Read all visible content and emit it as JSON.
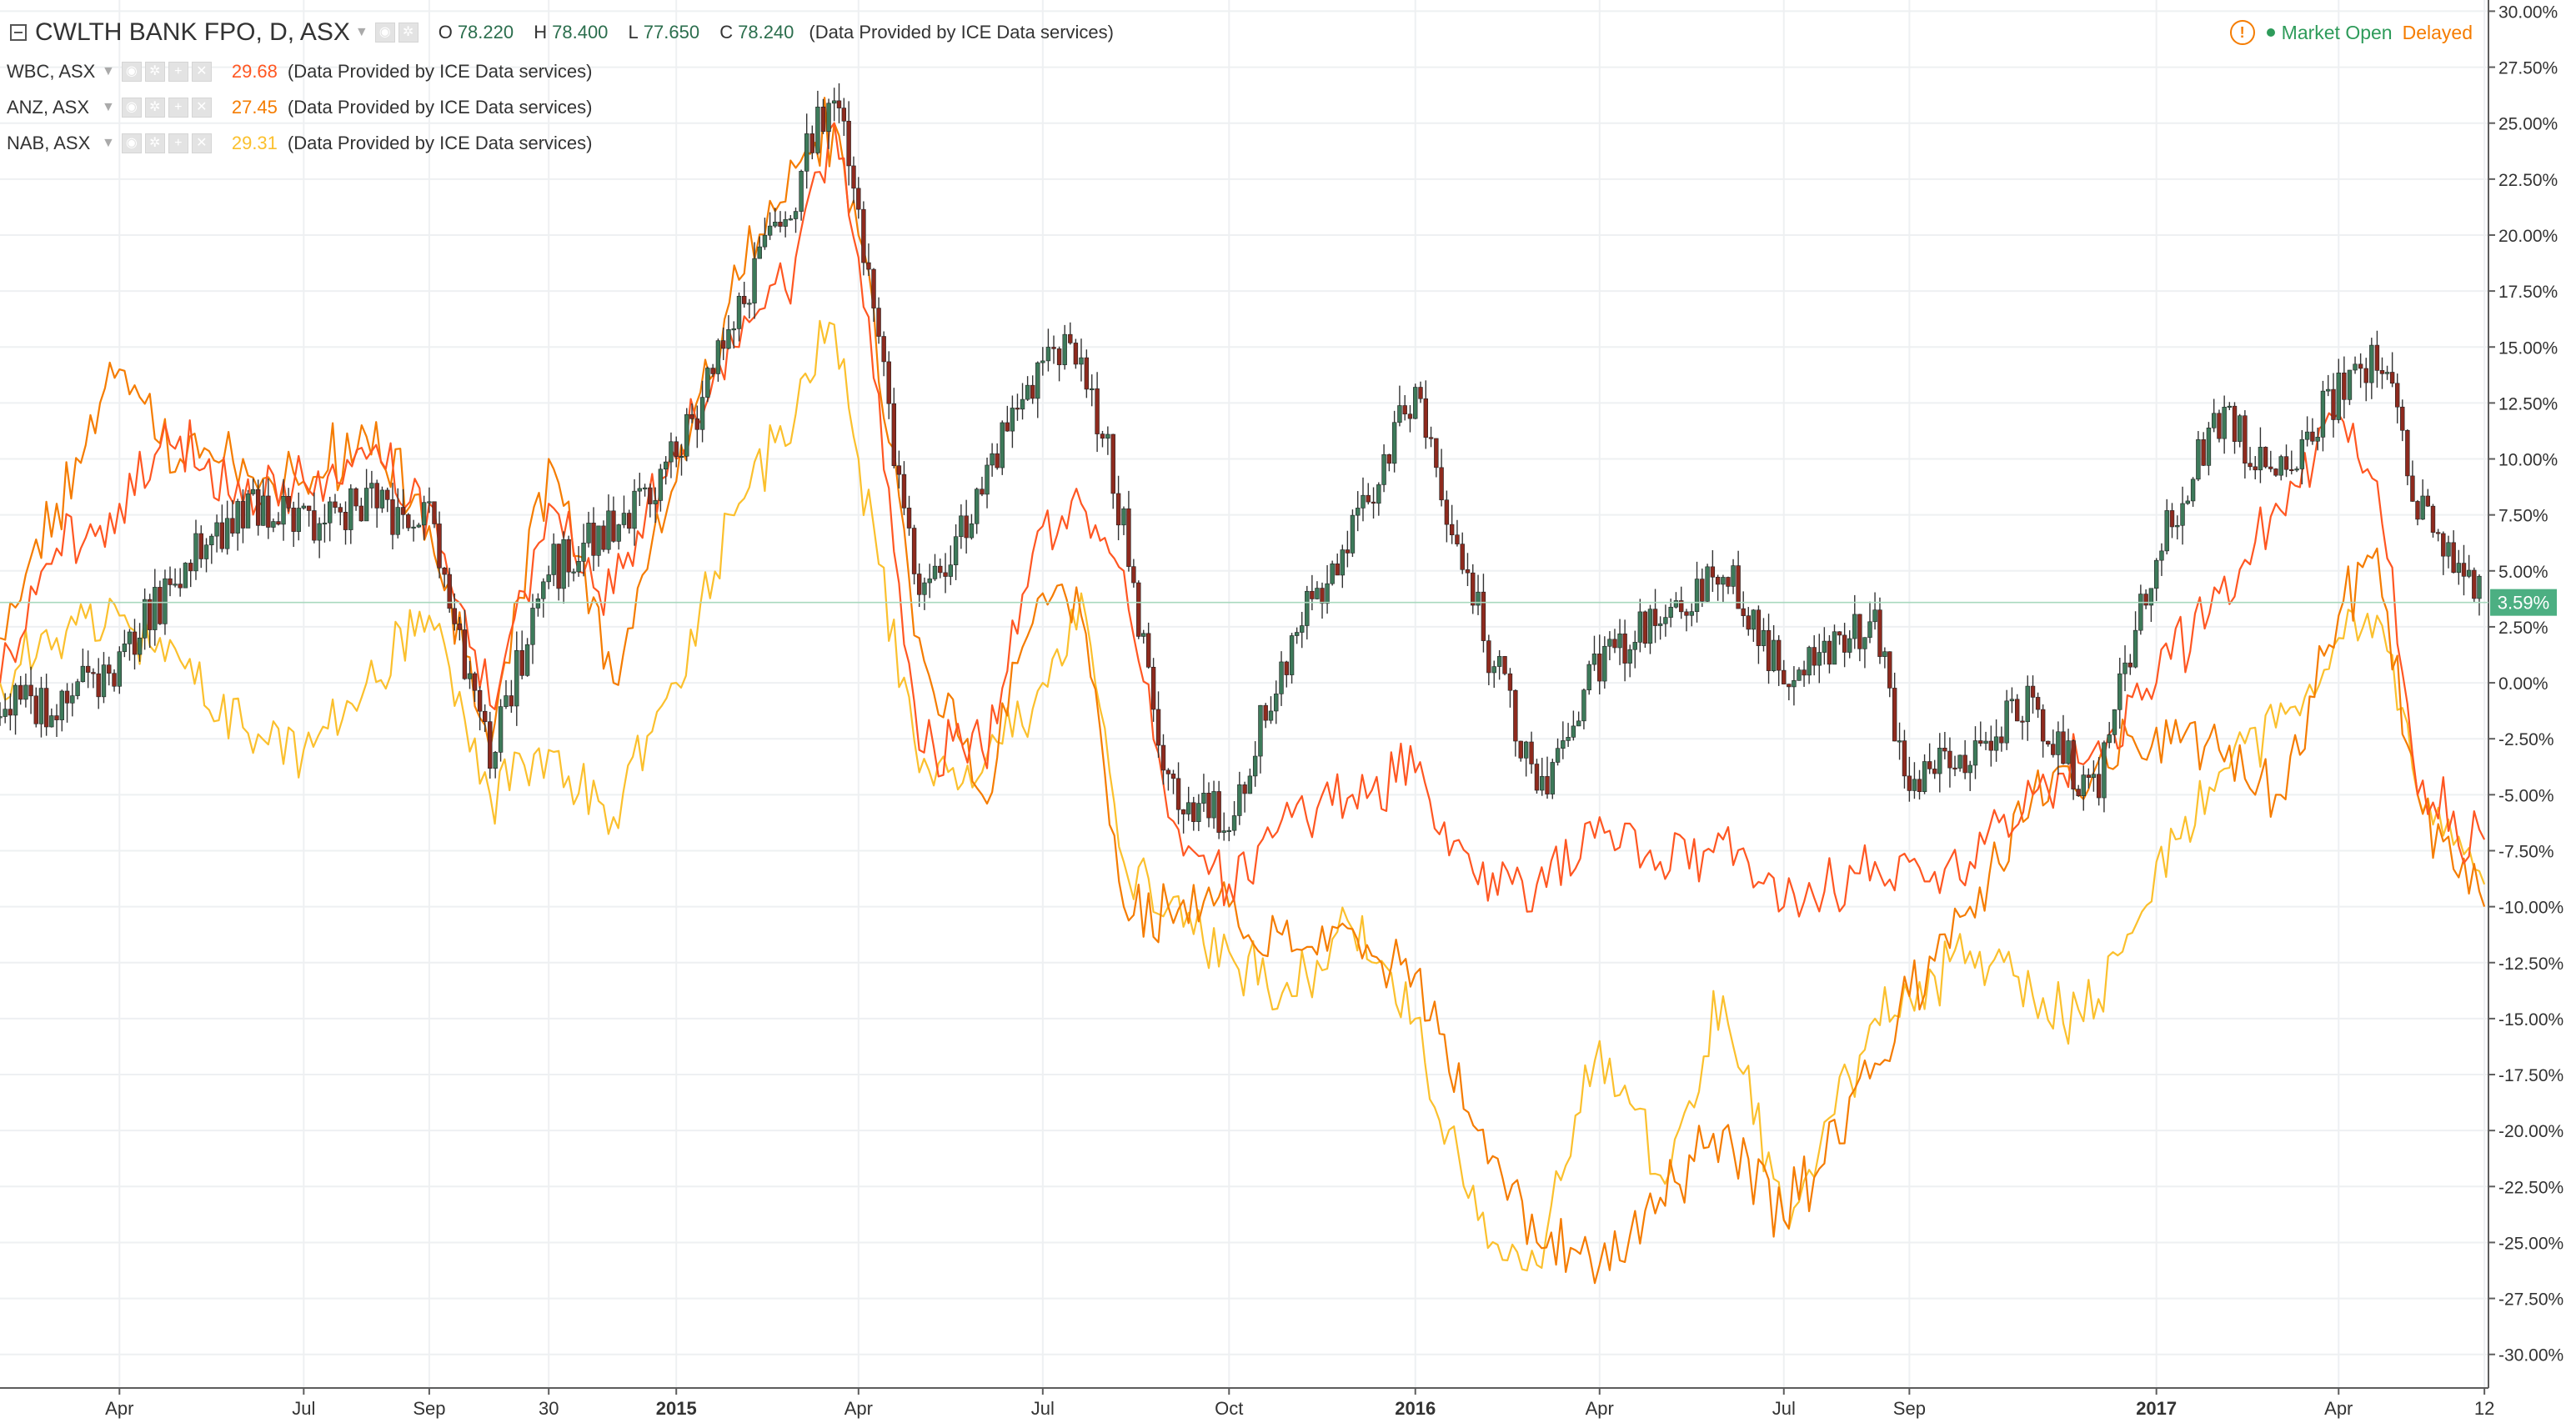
{
  "main": {
    "title": "CWLTH BANK FPO, D, ASX",
    "o_label": "O",
    "o": "78.220",
    "h_label": "H",
    "h": "78.400",
    "l_label": "L",
    "l": "77.650",
    "c_label": "C",
    "c": "78.240",
    "provider": "(Data Provided by ICE Data services)"
  },
  "legend": [
    {
      "name": "WBC, ASX",
      "value": "29.68",
      "color": "#ff5722",
      "provider": "(Data Provided by ICE Data services)"
    },
    {
      "name": "ANZ, ASX",
      "value": "27.45",
      "color": "#f57c00",
      "provider": "(Data Provided by ICE Data services)"
    },
    {
      "name": "NAB, ASX",
      "value": "29.31",
      "color": "#fbc02d",
      "provider": "(Data Provided by ICE Data services)"
    }
  ],
  "status": {
    "warn_icon": "warning-icon",
    "market": "Market Open",
    "delayed": "Delayed"
  },
  "colors": {
    "up": "#3d7a5a",
    "down": "#8e2a1e",
    "wbc": "#ff5722",
    "anz": "#f57c00",
    "nab": "#fbc02d",
    "last_price": "#4caf82"
  },
  "chart_data": {
    "type": "line",
    "x_ticks": [
      {
        "label": "Apr",
        "date": "2014-04-01",
        "bold": false
      },
      {
        "label": "Jul",
        "date": "2014-07-01",
        "bold": false
      },
      {
        "label": "Sep",
        "date": "2014-09-01",
        "bold": false
      },
      {
        "label": "30",
        "date": "2014-10-30",
        "bold": false
      },
      {
        "label": "2015",
        "date": "2015-01-01",
        "bold": true
      },
      {
        "label": "Apr",
        "date": "2015-04-01",
        "bold": false
      },
      {
        "label": "Jul",
        "date": "2015-07-01",
        "bold": false
      },
      {
        "label": "Oct",
        "date": "2015-10-01",
        "bold": false
      },
      {
        "label": "2016",
        "date": "2016-01-01",
        "bold": true
      },
      {
        "label": "Apr",
        "date": "2016-04-01",
        "bold": false
      },
      {
        "label": "Jul",
        "date": "2016-07-01",
        "bold": false
      },
      {
        "label": "Sep",
        "date": "2016-09-01",
        "bold": false
      },
      {
        "label": "2017",
        "date": "2017-01-01",
        "bold": true
      },
      {
        "label": "Apr",
        "date": "2017-04-01",
        "bold": false
      },
      {
        "label": "12",
        "date": "2017-06-12",
        "bold": false
      }
    ],
    "x_range": [
      "2014-02-01",
      "2017-06-14"
    ],
    "ylim": [
      -31.5,
      30.5
    ],
    "y_ticks": [
      30,
      27.5,
      25,
      22.5,
      20,
      17.5,
      15,
      12.5,
      10,
      7.5,
      5,
      2.5,
      0,
      -2.5,
      -5,
      -7.5,
      -10,
      -12.5,
      -15,
      -17.5,
      -20,
      -22.5,
      -25,
      -27.5,
      -30
    ],
    "y_tick_unit": "%",
    "last_value_label": "3.59%",
    "last_value": 3.59,
    "grid": true,
    "legend_position": "top-left",
    "series": [
      {
        "name": "CWLTH BANK FPO",
        "type": "candlestick",
        "color_up": "#3d7a5a",
        "color_down": "#8e2a1e",
        "x": [
          "2014-02-01",
          "2014-03-01",
          "2014-04-01",
          "2014-05-01",
          "2014-06-01",
          "2014-07-01",
          "2014-08-01",
          "2014-09-01",
          "2014-10-01",
          "2014-10-30",
          "2014-12-01",
          "2015-01-01",
          "2015-02-01",
          "2015-03-01",
          "2015-03-20",
          "2015-04-01",
          "2015-05-01",
          "2015-06-01",
          "2015-07-01",
          "2015-07-20",
          "2015-08-10",
          "2015-09-01",
          "2015-10-01",
          "2015-11-01",
          "2015-12-01",
          "2016-01-01",
          "2016-02-01",
          "2016-03-01",
          "2016-04-01",
          "2016-05-01",
          "2016-06-01",
          "2016-07-01",
          "2016-08-15",
          "2016-09-01",
          "2016-10-01",
          "2016-11-01",
          "2016-12-01",
          "2017-01-01",
          "2017-02-01",
          "2017-03-01",
          "2017-04-01",
          "2017-04-20",
          "2017-05-10",
          "2017-06-12"
        ],
        "y": [
          -1,
          -1,
          1,
          5,
          8,
          7,
          8,
          7,
          -3,
          5,
          7,
          10,
          17,
          22,
          27,
          21,
          3,
          9,
          14,
          15,
          7,
          -5,
          -6,
          2,
          7,
          13,
          3,
          -5,
          1,
          3,
          5,
          0,
          3,
          -5,
          -3,
          -1,
          -5,
          6,
          12,
          9,
          13,
          15,
          8,
          3.59
        ]
      },
      {
        "name": "WBC, ASX",
        "color": "#ff5722",
        "x": [
          "2014-02-01",
          "2014-03-01",
          "2014-04-01",
          "2014-05-01",
          "2014-06-01",
          "2014-07-01",
          "2014-08-01",
          "2014-09-01",
          "2014-10-01",
          "2014-10-30",
          "2014-12-01",
          "2015-01-01",
          "2015-02-01",
          "2015-03-01",
          "2015-03-20",
          "2015-04-01",
          "2015-05-01",
          "2015-06-01",
          "2015-07-01",
          "2015-07-20",
          "2015-08-10",
          "2015-09-01",
          "2015-10-01",
          "2015-11-01",
          "2015-12-01",
          "2016-01-01",
          "2016-02-01",
          "2016-03-01",
          "2016-04-01",
          "2016-05-01",
          "2016-06-01",
          "2016-07-01",
          "2016-08-15",
          "2016-09-01",
          "2016-10-01",
          "2016-11-01",
          "2016-12-01",
          "2017-01-01",
          "2017-02-01",
          "2017-03-01",
          "2017-04-01",
          "2017-04-20",
          "2017-05-10",
          "2017-06-12"
        ],
        "y": [
          0,
          6,
          8,
          11,
          8,
          9,
          10,
          8,
          -1,
          8,
          4,
          10,
          15,
          19,
          25,
          19,
          -3,
          -3,
          7,
          8,
          5,
          -6,
          -9,
          -6,
          -5,
          -4,
          -9,
          -9,
          -6,
          -8,
          -7,
          -10,
          -8,
          -8,
          -8,
          -5,
          -3,
          0,
          4,
          8,
          12,
          9,
          -5,
          -7
        ]
      },
      {
        "name": "ANZ, ASX",
        "color": "#f57c00",
        "x": [
          "2014-02-01",
          "2014-03-01",
          "2014-04-01",
          "2014-05-01",
          "2014-06-01",
          "2014-07-01",
          "2014-08-01",
          "2014-09-01",
          "2014-10-01",
          "2014-10-30",
          "2014-12-01",
          "2015-01-01",
          "2015-02-01",
          "2015-03-01",
          "2015-03-20",
          "2015-04-01",
          "2015-05-01",
          "2015-06-01",
          "2015-07-01",
          "2015-07-20",
          "2015-08-10",
          "2015-09-01",
          "2015-10-01",
          "2015-11-01",
          "2015-12-01",
          "2016-01-01",
          "2016-02-01",
          "2016-03-01",
          "2016-04-01",
          "2016-05-01",
          "2016-06-01",
          "2016-07-01",
          "2016-08-15",
          "2016-09-01",
          "2016-10-01",
          "2016-11-01",
          "2016-12-01",
          "2017-01-01",
          "2017-02-01",
          "2017-03-01",
          "2017-04-01",
          "2017-04-20",
          "2017-05-10",
          "2017-06-12"
        ],
        "y": [
          2,
          8,
          14,
          10,
          10,
          9,
          11,
          7,
          -3,
          10,
          0,
          9,
          18,
          23,
          25,
          20,
          2,
          -5,
          4,
          3,
          -10,
          -10,
          -10,
          -12,
          -11,
          -13,
          -20,
          -25,
          -26,
          -23,
          -20,
          -24,
          -17,
          -14,
          -10,
          -5,
          -4,
          -2,
          -3,
          -5,
          3,
          6,
          -5,
          -10
        ]
      },
      {
        "name": "NAB, ASX",
        "color": "#fbc02d",
        "x": [
          "2014-02-01",
          "2014-03-01",
          "2014-04-01",
          "2014-05-01",
          "2014-06-01",
          "2014-07-01",
          "2014-08-01",
          "2014-09-01",
          "2014-10-01",
          "2014-10-30",
          "2014-12-01",
          "2015-01-01",
          "2015-02-01",
          "2015-03-01",
          "2015-03-20",
          "2015-04-01",
          "2015-05-01",
          "2015-06-01",
          "2015-07-01",
          "2015-07-20",
          "2015-08-10",
          "2015-09-01",
          "2015-10-01",
          "2015-11-01",
          "2015-12-01",
          "2016-01-01",
          "2016-02-01",
          "2016-03-01",
          "2016-04-01",
          "2016-05-01",
          "2016-06-01",
          "2016-07-01",
          "2016-08-15",
          "2016-09-01",
          "2016-10-01",
          "2016-11-01",
          "2016-12-01",
          "2017-01-01",
          "2017-02-01",
          "2017-03-01",
          "2017-04-01",
          "2017-04-20",
          "2017-05-10",
          "2017-06-12"
        ],
        "y": [
          0,
          2,
          3,
          1,
          -2,
          -3,
          0,
          3,
          -5,
          -3,
          -6,
          0,
          8,
          12,
          16,
          10,
          -4,
          -4,
          0,
          4,
          -8,
          -10,
          -12,
          -14,
          -11,
          -15,
          -24,
          -26,
          -16,
          -22,
          -14,
          -24,
          -15,
          -14,
          -12,
          -14,
          -15,
          -8,
          -4,
          -2,
          2,
          3,
          -5,
          -9
        ]
      }
    ]
  }
}
